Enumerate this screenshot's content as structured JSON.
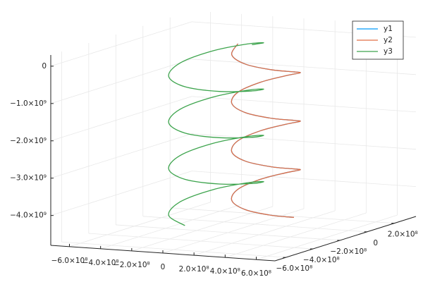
{
  "chart_data": {
    "type": "line3d",
    "xlim": [
      -720000000.0,
      720000000.0
    ],
    "ylim": [
      -680000000.0,
      360000000.0
    ],
    "zlim": [
      -4800000000.0,
      300000000.0
    ],
    "xticks": [
      {
        "value": -600000000.0,
        "label": "−6.0×10⁸"
      },
      {
        "value": -400000000.0,
        "label": "−4.0×10⁸"
      },
      {
        "value": -200000000.0,
        "label": "−2.0×10⁸"
      },
      0,
      {
        "value": 200000000.0,
        "label": "2.0×10⁸"
      },
      {
        "value": 400000000.0,
        "label": "4.0×10⁸"
      },
      {
        "value": 600000000.0,
        "label": "6.0×10⁸"
      }
    ],
    "yticks": [
      {
        "value": -600000000.0,
        "label": "−6.0×10⁸"
      },
      {
        "value": -400000000.0,
        "label": "−4.0×10⁸"
      },
      {
        "value": -200000000.0,
        "label": "−2.0×10⁸"
      },
      0,
      {
        "value": 200000000.0,
        "label": "2.0×10⁸"
      }
    ],
    "zticks": [
      0,
      {
        "value": -1000000000.0,
        "label": "−1.0×10⁹"
      },
      {
        "value": -2000000000.0,
        "label": "−2.0×10⁹"
      },
      {
        "value": -3000000000.0,
        "label": "−3.0×10⁹"
      },
      {
        "value": -4000000000.0,
        "label": "−4.0×10⁹"
      }
    ],
    "grid": true,
    "legend": "top-right",
    "series": [
      {
        "name": "y1",
        "color": "#009afa",
        "x": [
          -110000000.0,
          -57000000.0,
          70000000.0,
          197000000.0,
          250000000.0,
          197000000.0,
          70000000.0,
          -57000000.0,
          -110000000.0,
          -57000000.0,
          70000000.0,
          197000000.0,
          250000000.0,
          197000000.0,
          70000000.0,
          -57000000.0,
          -110000000.0,
          -57000000.0,
          70000000.0,
          197000000.0,
          250000000.0,
          197000000.0,
          70000000.0,
          -57000000.0,
          -110000000.0,
          -57000000.0,
          70000000.0,
          197000000.0,
          250000000.0
        ],
        "y": [
          0,
          -106000000.0,
          -150000000.0,
          -106000000.0,
          0,
          106000000.0,
          150000000.0,
          106000000.0,
          0,
          -106000000.0,
          -150000000.0,
          -106000000.0,
          0,
          106000000.0,
          150000000.0,
          106000000.0,
          0,
          -106000000.0,
          -150000000.0,
          -106000000.0,
          0,
          106000000.0,
          150000000.0,
          106000000.0,
          0,
          -106000000.0,
          -150000000.0,
          -106000000.0,
          0
        ],
        "z": [
          0,
          -162500000.0,
          -325000000.0,
          -487500000.0,
          -650000000.0,
          -812500000.0,
          -975000000.0,
          -1137500000.0,
          -1300000000.0,
          -1462500000.0,
          -1625000000.0,
          -1787500000.0,
          -1950000000.0,
          -2112500000.0,
          -2275000000.0,
          -2437500000.0,
          -2600000000.0,
          -2762500000.0,
          -2925000000.0,
          -3087500000.0,
          -3250000000.0,
          -3412500000.0,
          -3575000000.0,
          -3737500000.0,
          -3900000000.0,
          -4062500000.0,
          -4225000000.0,
          -4387500000.0,
          -4550000000.0
        ]
      },
      {
        "name": "y2",
        "color": "#e26f46",
        "x": [
          -110000000.0,
          -57000000.0,
          70000000.0,
          197000000.0,
          250000000.0,
          197000000.0,
          70000000.0,
          -57000000.0,
          -110000000.0,
          -57000000.0,
          70000000.0,
          197000000.0,
          250000000.0,
          197000000.0,
          70000000.0,
          -57000000.0,
          -110000000.0,
          -57000000.0,
          70000000.0,
          197000000.0,
          250000000.0,
          197000000.0,
          70000000.0,
          -57000000.0,
          -110000000.0,
          -57000000.0,
          70000000.0,
          197000000.0,
          250000000.0
        ],
        "y": [
          0,
          -106000000.0,
          -150000000.0,
          -106000000.0,
          0,
          106000000.0,
          150000000.0,
          106000000.0,
          0,
          -106000000.0,
          -150000000.0,
          -106000000.0,
          0,
          106000000.0,
          150000000.0,
          106000000.0,
          0,
          -106000000.0,
          -150000000.0,
          -106000000.0,
          0,
          106000000.0,
          150000000.0,
          106000000.0,
          0,
          -106000000.0,
          -150000000.0,
          -106000000.0,
          0
        ],
        "z": [
          0,
          -162500000.0,
          -325000000.0,
          -487500000.0,
          -650000000.0,
          -812500000.0,
          -975000000.0,
          -1137500000.0,
          -1300000000.0,
          -1462500000.0,
          -1625000000.0,
          -1787500000.0,
          -1950000000.0,
          -2112500000.0,
          -2275000000.0,
          -2437500000.0,
          -2600000000.0,
          -2762500000.0,
          -2925000000.0,
          -3087500000.0,
          -3250000000.0,
          -3412500000.0,
          -3575000000.0,
          -3737500000.0,
          -3900000000.0,
          -4062500000.0,
          -4225000000.0,
          -4387500000.0,
          -4550000000.0
        ]
      },
      {
        "name": "y3",
        "color": "#3da44d",
        "x": [
          -20000000.0,
          -87000000.0,
          -250000000.0,
          -413000000.0,
          -480000000.0,
          -413000000.0,
          -250000000.0,
          -87000000.0,
          -20000000.0,
          -87000000.0,
          -250000000.0,
          -413000000.0,
          -480000000.0,
          -413000000.0,
          -250000000.0,
          -87000000.0,
          -20000000.0,
          -87000000.0,
          -250000000.0,
          -413000000.0,
          -480000000.0,
          -413000000.0,
          -250000000.0,
          -87000000.0,
          -20000000.0,
          -87000000.0,
          -250000000.0,
          -413000000.0,
          -480000000.0,
          -413000000.0,
          -250000000.0
        ],
        "y": [
          0,
          163000000.0,
          230000000.0,
          163000000.0,
          0,
          -163000000.0,
          -230000000.0,
          -163000000.0,
          0,
          163000000.0,
          230000000.0,
          163000000.0,
          0,
          -163000000.0,
          -230000000.0,
          -163000000.0,
          0,
          163000000.0,
          230000000.0,
          163000000.0,
          0,
          -163000000.0,
          -230000000.0,
          -163000000.0,
          0,
          163000000.0,
          230000000.0,
          163000000.0,
          0,
          -163000000.0,
          -230000000.0
        ],
        "z": [
          0,
          -155000000.0,
          -310000000.0,
          -465000000.0,
          -620000000.0,
          -775000000.0,
          -930000000.0,
          -1085000000.0,
          -1240000000.0,
          -1395000000.0,
          -1550000000.0,
          -1705000000.0,
          -1860000000.0,
          -2015000000.0,
          -2170000000.0,
          -2325000000.0,
          -2480000000.0,
          -2635000000.0,
          -2790000000.0,
          -2945000000.0,
          -3100000000.0,
          -3255000000.0,
          -3410000000.0,
          -3565000000.0,
          -3720000000.0,
          -3875000000.0,
          -4030000000.0,
          -4185000000.0,
          -4340000000.0,
          -4495000000.0,
          -4650000000.0
        ]
      }
    ]
  }
}
